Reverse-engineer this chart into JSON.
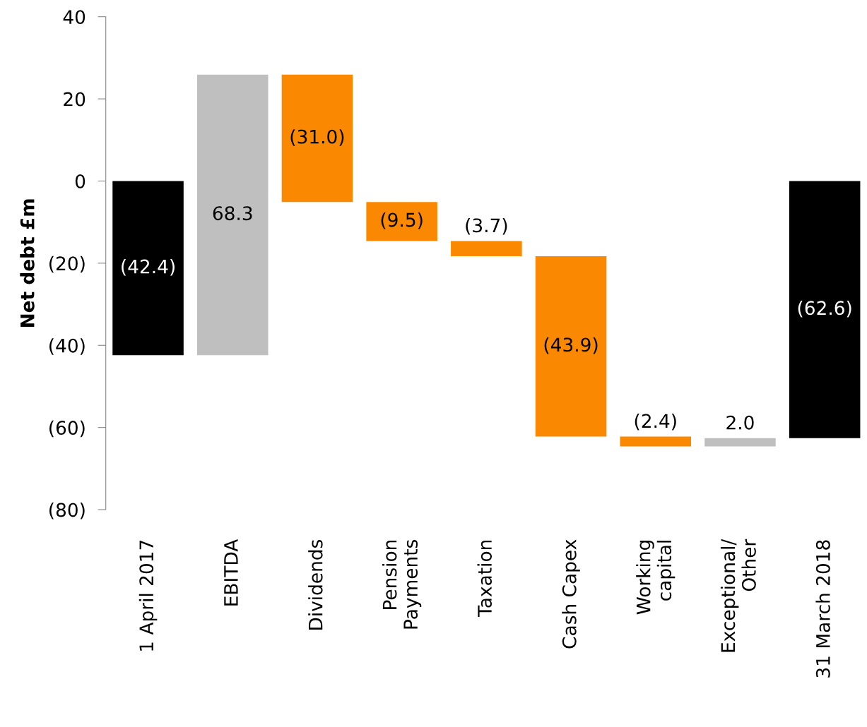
{
  "chart_data": {
    "type": "bar",
    "ylabel": "Net debt £m",
    "categories": [
      "1 April 2017",
      "EBITDA",
      "Dividends",
      "Pension\nPayments",
      "Taxation",
      "Cash Capex",
      "Working\ncapital",
      "Exceptional/\nOther",
      "31 March 2018"
    ],
    "values": [
      -42.4,
      68.3,
      -31.0,
      -9.5,
      -3.7,
      -43.9,
      -2.4,
      2.0,
      -62.6
    ],
    "base": [
      0,
      -42.4,
      25.9,
      -5.1,
      -14.6,
      -18.3,
      -62.2,
      -64.6,
      0
    ],
    "colors": [
      "#000000",
      "#bfbfbf",
      "#fa8800",
      "#fa8800",
      "#fa8800",
      "#fa8800",
      "#fa8800",
      "#bfbfbf",
      "#000000"
    ],
    "value_labels": [
      "(42.4)",
      "68.3",
      "(31.0)",
      "(9.5)",
      "(3.7)",
      "(43.9)",
      "(2.4)",
      "2.0",
      "(62.6)"
    ],
    "ylim": [
      -80,
      40
    ],
    "yticks": [
      40,
      20,
      0,
      {
        "value": -20,
        "label": "(20)"
      },
      {
        "value": -40,
        "label": "(40)"
      },
      {
        "value": -60,
        "label": "(60)"
      },
      {
        "value": -80,
        "label": "(80)"
      }
    ],
    "grid": false,
    "legend": false
  }
}
